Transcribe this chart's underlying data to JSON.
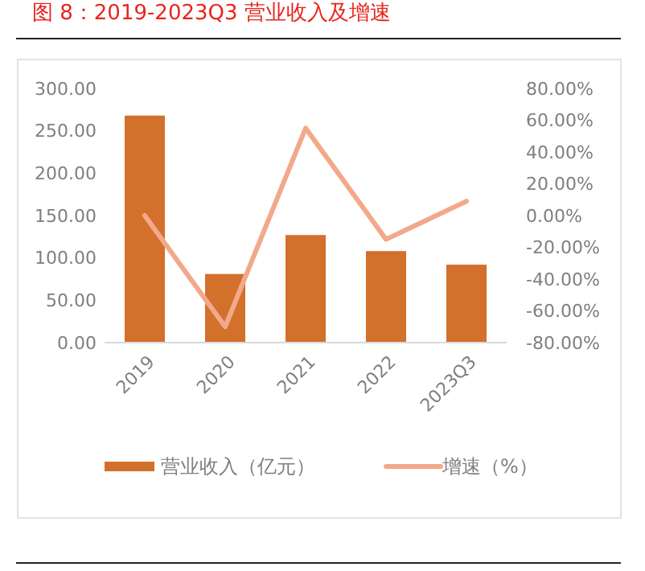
{
  "chart_data": {
    "type": "bar",
    "title": "图 8：2019-2023Q3 营业收入及增速",
    "categories": [
      "2019",
      "2020",
      "2021",
      "2022",
      "2023Q3"
    ],
    "series": [
      {
        "name": "营业收入（亿元）",
        "color": "#d3702c",
        "values": [
          268,
          81,
          127,
          108,
          92
        ]
      },
      {
        "name": "增速（%）",
        "type": "line",
        "axis": "y2",
        "color": "#f2a98a",
        "values": [
          0,
          -70,
          55,
          -15,
          9
        ]
      }
    ],
    "ylim": [
      0,
      300
    ],
    "yticks": [
      {
        "value": 0,
        "label": "0.00"
      },
      {
        "value": 50,
        "label": "50.00"
      },
      {
        "value": 100,
        "label": "100.00"
      },
      {
        "value": 150,
        "label": "150.00"
      },
      {
        "value": 200,
        "label": "200.00"
      },
      {
        "value": 250,
        "label": "250.00"
      },
      {
        "value": 300,
        "label": "300.00"
      }
    ],
    "y2lim": [
      -80,
      80
    ],
    "y2ticks": [
      {
        "value": -80,
        "label": "-80.00%"
      },
      {
        "value": -60,
        "label": "-60.00%"
      },
      {
        "value": -40,
        "label": "-40.00%"
      },
      {
        "value": -20,
        "label": "-20.00%"
      },
      {
        "value": 0,
        "label": "0.00%"
      },
      {
        "value": 20,
        "label": "20.00%"
      },
      {
        "value": 40,
        "label": "40.00%"
      },
      {
        "value": 60,
        "label": "60.00%"
      },
      {
        "value": 80,
        "label": "80.00%"
      }
    ],
    "legend": "bottom",
    "grid": false
  }
}
